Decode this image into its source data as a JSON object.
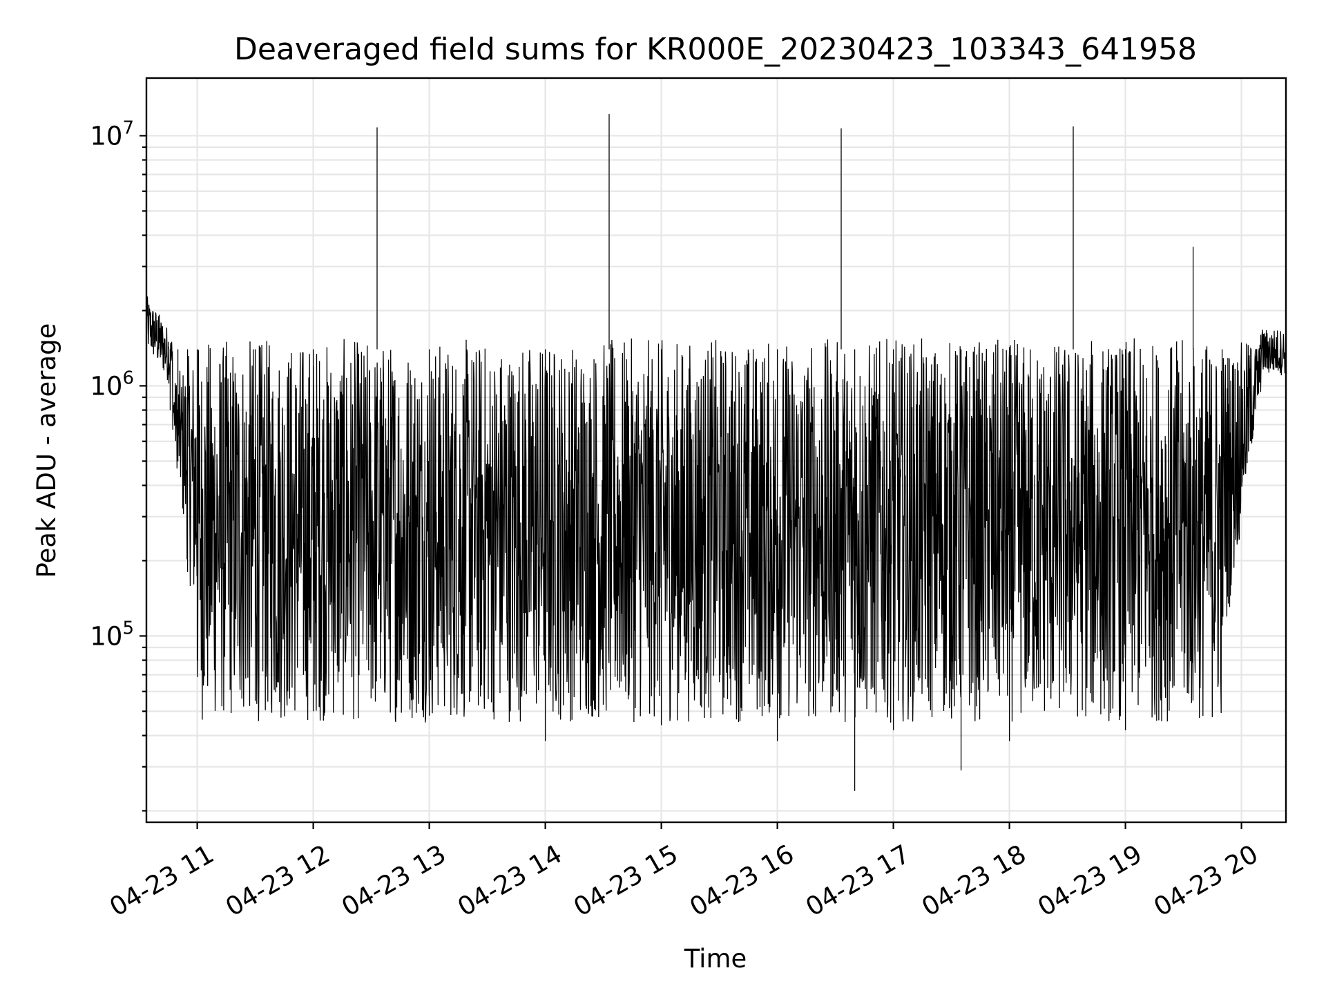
{
  "chart_data": {
    "type": "line",
    "title": "Deaveraged field sums for KR000E_20230423_103343_641958",
    "xlabel": "Time",
    "ylabel": "Peak ADU - average",
    "yscale": "log",
    "grid": true,
    "xlim": [
      "2023-04-23T10:33:43",
      "2023-04-23T20:23:00"
    ],
    "ylim": [
      18000,
      17000000
    ],
    "x_ticks": [
      {
        "value": "2023-04-23T11:00",
        "label": "04-23 11"
      },
      {
        "value": "2023-04-23T12:00",
        "label": "04-23 12"
      },
      {
        "value": "2023-04-23T13:00",
        "label": "04-23 13"
      },
      {
        "value": "2023-04-23T14:00",
        "label": "04-23 14"
      },
      {
        "value": "2023-04-23T15:00",
        "label": "04-23 15"
      },
      {
        "value": "2023-04-23T16:00",
        "label": "04-23 16"
      },
      {
        "value": "2023-04-23T17:00",
        "label": "04-23 17"
      },
      {
        "value": "2023-04-23T18:00",
        "label": "04-23 18"
      },
      {
        "value": "2023-04-23T19:00",
        "label": "04-23 19"
      },
      {
        "value": "2023-04-23T20:00",
        "label": "04-23 20"
      }
    ],
    "y_ticks": [
      {
        "value": 100000,
        "base": "10",
        "exp": "5"
      },
      {
        "value": 1000000,
        "base": "10",
        "exp": "6"
      },
      {
        "value": 10000000,
        "base": "10",
        "exp": "7"
      }
    ],
    "series": [
      {
        "color": "#000000",
        "points": [
          [
            "2023-04-23T10:33:43",
            2600000
          ],
          [
            "2023-04-23T10:40:00",
            1900000
          ],
          [
            "2023-04-23T10:45:00",
            1500000
          ],
          [
            "2023-04-23T10:46:00",
            800000
          ],
          [
            "2023-04-23T10:50:00",
            500000
          ],
          [
            "2023-04-23T10:55:00",
            180000
          ],
          [
            "2023-04-23T11:00:00",
            80000
          ],
          [
            "2023-04-23T11:30:00",
            55000
          ],
          [
            "2023-04-23T12:00:00",
            50000
          ],
          [
            "2023-04-23T12:33:00",
            10800000
          ],
          [
            "2023-04-23T13:00:00",
            48000
          ],
          [
            "2023-04-23T14:00:00",
            38000
          ],
          [
            "2023-04-23T14:33:00",
            12200000
          ],
          [
            "2023-04-23T15:00:00",
            44000
          ],
          [
            "2023-04-23T16:00:00",
            38000
          ],
          [
            "2023-04-23T16:33:00",
            10700000
          ],
          [
            "2023-04-23T16:40:00",
            24000
          ],
          [
            "2023-04-23T17:00:00",
            42000
          ],
          [
            "2023-04-23T17:35:00",
            29000
          ],
          [
            "2023-04-23T18:00:00",
            38000
          ],
          [
            "2023-04-23T18:33:00",
            10900000
          ],
          [
            "2023-04-23T19:00:00",
            42000
          ],
          [
            "2023-04-23T19:35:00",
            3600000
          ],
          [
            "2023-04-23T19:50:00",
            110000
          ],
          [
            "2023-04-23T20:05:00",
            600000
          ],
          [
            "2023-04-23T20:10:00",
            1600000
          ],
          [
            "2023-04-23T20:20:00",
            1300000
          ],
          [
            "2023-04-23T20:23:00",
            2300000
          ]
        ]
      }
    ]
  }
}
